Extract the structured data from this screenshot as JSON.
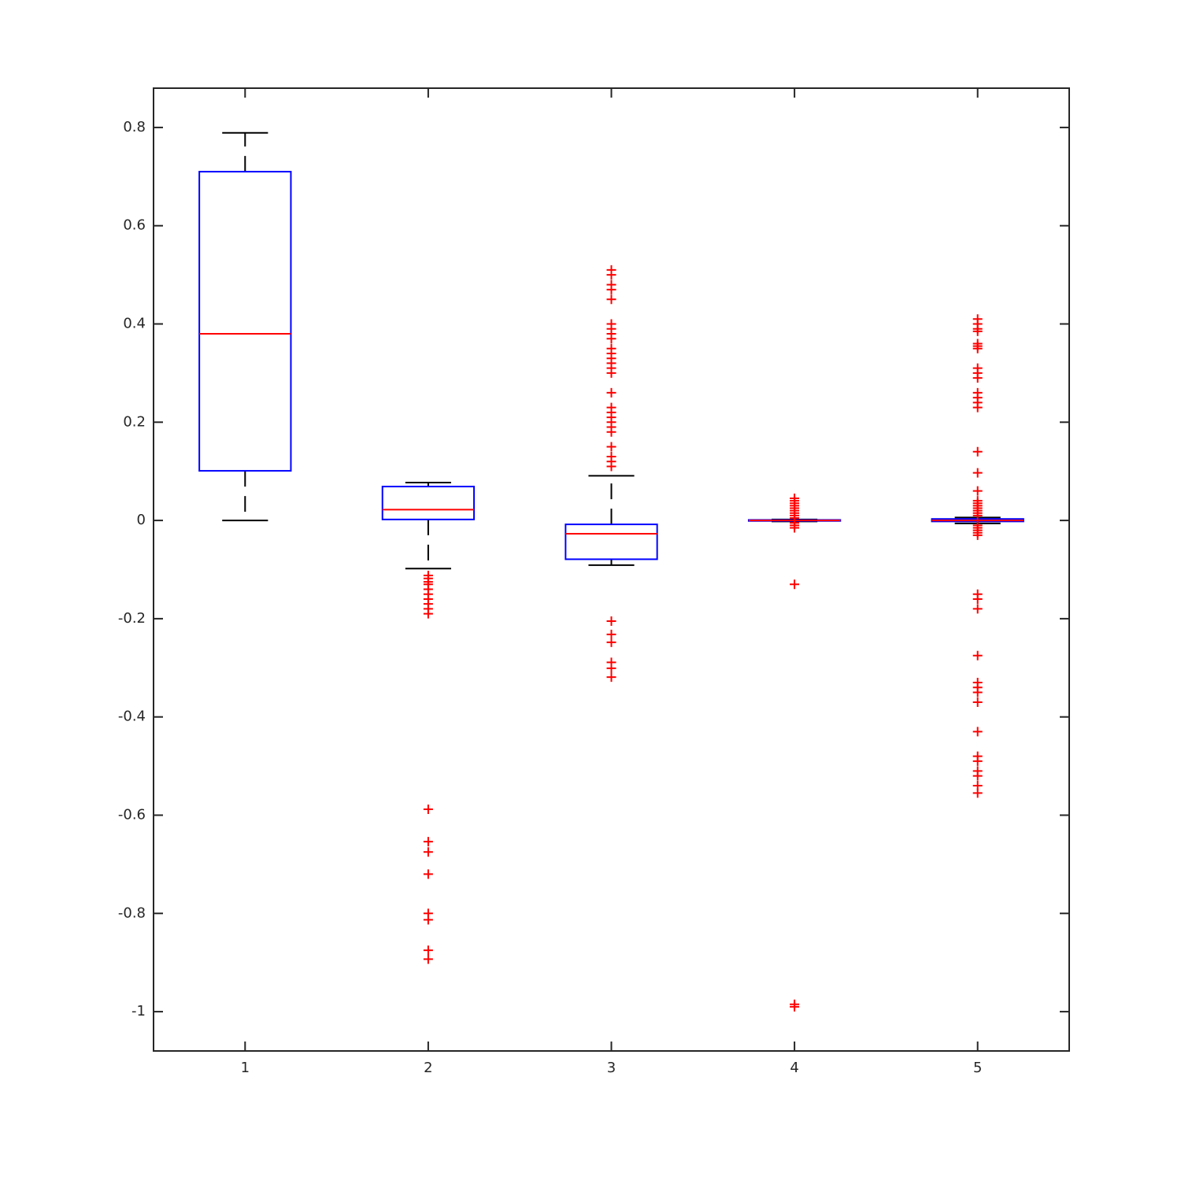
{
  "chart_data": {
    "type": "box",
    "categories": [
      "1",
      "2",
      "3",
      "4",
      "5"
    ],
    "boxes": [
      {
        "whisker_low": 0,
        "q1": 0.101,
        "median": 0.38,
        "q3": 0.71,
        "whisker_high": 0.789,
        "outliers": []
      },
      {
        "whisker_low": -0.098,
        "q1": 0.002,
        "median": 0.022,
        "q3": 0.069,
        "whisker_high": 0.077,
        "outliers": [
          -0.112,
          -0.118,
          -0.125,
          -0.13,
          -0.14,
          -0.15,
          -0.16,
          -0.17,
          -0.18,
          -0.19,
          -0.588,
          -0.654,
          -0.675,
          -0.72,
          -0.8,
          -0.813,
          -0.875,
          -0.893
        ]
      },
      {
        "whisker_low": -0.091,
        "q1": -0.079,
        "median": -0.027,
        "q3": -0.008,
        "whisker_high": 0.091,
        "outliers": [
          0.51,
          0.5,
          0.48,
          0.47,
          0.45,
          0.4,
          0.39,
          0.38,
          0.37,
          0.35,
          0.34,
          0.33,
          0.32,
          0.31,
          0.3,
          0.26,
          0.23,
          0.22,
          0.21,
          0.2,
          0.19,
          0.18,
          0.15,
          0.13,
          0.12,
          0.11,
          -0.205,
          -0.232,
          -0.248,
          -0.289,
          -0.301,
          -0.319
        ]
      },
      {
        "whisker_low": -0.002,
        "q1": -0.001,
        "median": 0,
        "q3": 0.001,
        "whisker_high": 0.002,
        "outliers": [
          0.045,
          0.04,
          0.035,
          0.03,
          0.025,
          0.02,
          0.015,
          0.01,
          0.005,
          -0.005,
          -0.01,
          -0.015,
          -0.13,
          -0.985,
          -0.99
        ]
      },
      {
        "whisker_low": -0.006,
        "q1": -0.002,
        "median": 0,
        "q3": 0.003,
        "whisker_high": 0.006,
        "outliers": [
          0.41,
          0.4,
          0.39,
          0.385,
          0.36,
          0.355,
          0.35,
          0.31,
          0.3,
          0.29,
          0.26,
          0.25,
          0.24,
          0.23,
          0.14,
          0.097,
          0.06,
          0.04,
          0.035,
          0.03,
          0.025,
          0.02,
          0.015,
          0.01,
          -0.01,
          -0.015,
          -0.02,
          -0.025,
          -0.03,
          -0.15,
          -0.16,
          -0.18,
          -0.275,
          -0.33,
          -0.34,
          -0.35,
          -0.37,
          -0.43,
          -0.48,
          -0.49,
          -0.51,
          -0.52,
          -0.54,
          -0.555
        ]
      }
    ],
    "box_color": "#0000ff",
    "median_color": "#ff0000",
    "whisker_color": "#000000",
    "outlier_color": "#ff0000",
    "ylim": [
      -1.08,
      0.88
    ],
    "yticks": [
      -1,
      -0.8,
      -0.6,
      -0.4,
      -0.2,
      0,
      0.2,
      0.4,
      0.6,
      0.8
    ]
  }
}
